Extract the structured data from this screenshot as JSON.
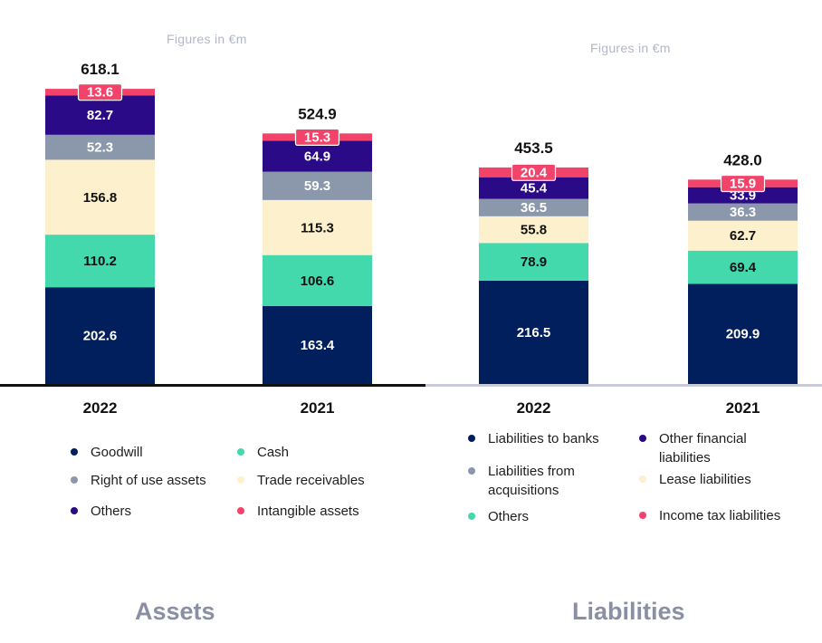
{
  "colors": {
    "goodwill": "#001f5c",
    "cash": "#43d9ad",
    "trade_receivables": "#fdf1cd",
    "right_of_use": "#8b97aa",
    "others": "#2a0a86",
    "intangible": "#f2446a",
    "liab_banks": "#001f5c",
    "liab_others": "#43d9ad",
    "lease": "#fdf1cd",
    "liab_acquisitions": "#8b97aa",
    "other_financial": "#2a0a86",
    "income_tax": "#f2446a"
  },
  "notes": {
    "assets": "Figures in €m",
    "liabilities": "Figures in €m"
  },
  "sections": {
    "assets_title": "Assets",
    "liabilities_title": "Liabilities"
  },
  "chart_data": [
    {
      "type": "bar",
      "stacked": true,
      "title": "Assets",
      "categories": [
        "2022",
        "2021"
      ],
      "totals": [
        "618.1",
        "524.9"
      ],
      "series": [
        {
          "name": "Goodwill",
          "key": "goodwill",
          "values": [
            202.6,
            163.4
          ],
          "labels": [
            "202.6",
            "163.4"
          ]
        },
        {
          "name": "Cash",
          "key": "cash",
          "values": [
            110.2,
            106.6
          ],
          "labels": [
            "110.2",
            "106.6"
          ]
        },
        {
          "name": "Trade receivables",
          "key": "trade_receivables",
          "values": [
            156.8,
            115.3
          ],
          "labels": [
            "156.8",
            "115.3"
          ]
        },
        {
          "name": "Right of use assets",
          "key": "right_of_use",
          "values": [
            52.3,
            59.3
          ],
          "labels": [
            "52.3",
            "59.3"
          ]
        },
        {
          "name": "Others",
          "key": "others",
          "values": [
            82.7,
            64.9
          ],
          "labels": [
            "82.7",
            "64.9"
          ]
        },
        {
          "name": "Intangible assets",
          "key": "intangible",
          "values": [
            13.6,
            15.3
          ],
          "labels": [
            "13.6",
            "15.3"
          ]
        }
      ],
      "legend": [
        {
          "name": "Goodwill",
          "key": "goodwill"
        },
        {
          "name": "Cash",
          "key": "cash"
        },
        {
          "name": "Right of use assets",
          "key": "right_of_use"
        },
        {
          "name": "Trade receivables",
          "key": "trade_receivables"
        },
        {
          "name": "Others",
          "key": "others"
        },
        {
          "name": "Intangible assets",
          "key": "intangible"
        }
      ]
    },
    {
      "type": "bar",
      "stacked": true,
      "title": "Liabilities",
      "categories": [
        "2022",
        "2021"
      ],
      "totals": [
        "453.5",
        "428.0"
      ],
      "series": [
        {
          "name": "Liabilities to banks",
          "key": "liab_banks",
          "values": [
            216.5,
            209.9
          ],
          "labels": [
            "216.5",
            "209.9"
          ]
        },
        {
          "name": "Others",
          "key": "liab_others",
          "values": [
            78.9,
            69.4
          ],
          "labels": [
            "78.9",
            "69.4"
          ]
        },
        {
          "name": "Lease liabilities",
          "key": "lease",
          "values": [
            55.8,
            62.7
          ],
          "labels": [
            "55.8",
            "62.7"
          ]
        },
        {
          "name": "Liabilities from acquisitions",
          "key": "liab_acquisitions",
          "values": [
            36.5,
            36.3
          ],
          "labels": [
            "36.5",
            "36.3"
          ]
        },
        {
          "name": "Other financial liabilities",
          "key": "other_financial",
          "values": [
            45.4,
            33.9
          ],
          "labels": [
            "45.4",
            "33.9"
          ]
        },
        {
          "name": "Income tax liabilities",
          "key": "income_tax",
          "values": [
            20.4,
            15.9
          ],
          "labels": [
            "20.4",
            "15.9"
          ]
        }
      ],
      "legend": [
        {
          "name": "Liabilities to banks",
          "key": "liab_banks"
        },
        {
          "name": "Other financial liabilities",
          "key": "other_financial"
        },
        {
          "name": "Liabilities from acquisitions",
          "key": "liab_acquisitions"
        },
        {
          "name": "Lease liabilities",
          "key": "lease"
        },
        {
          "name": "Others",
          "key": "liab_others"
        },
        {
          "name": "Income tax liabilities",
          "key": "income_tax"
        }
      ]
    }
  ]
}
